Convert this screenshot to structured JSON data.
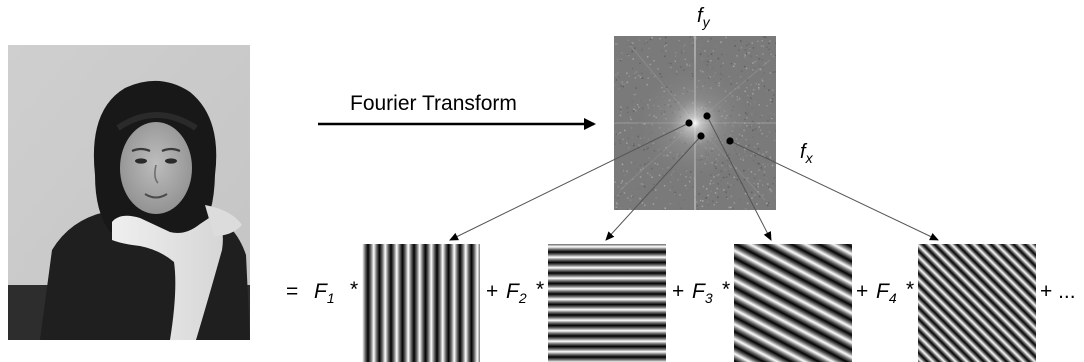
{
  "transform_label": "Fourier Transform",
  "fy_label": {
    "base": "f",
    "sub": "y"
  },
  "fx_label": {
    "base": "f",
    "sub": "x"
  },
  "photo": {
    "description_icon": "portrait-photo"
  },
  "equals_sign": "=",
  "terms": [
    {
      "prefix": "F",
      "sub": "1",
      "op": "*",
      "pattern": "vertical",
      "period": 11.5,
      "angle": 0
    },
    {
      "plus": "+",
      "prefix": "F",
      "sub": "2",
      "op": "*",
      "pattern": "horizontal",
      "period": 10.5,
      "angle": 90
    },
    {
      "plus": "+",
      "prefix": "F",
      "sub": "3",
      "op": "*",
      "pattern": "diagonal-coarse",
      "period": 13,
      "angle": 120
    },
    {
      "plus": "+",
      "prefix": "F",
      "sub": "4",
      "op": "*",
      "pattern": "diagonal-fine",
      "period": 8,
      "angle": 135
    }
  ],
  "trailing": "+ ...",
  "colors": {
    "background": "#ffffff",
    "line": "#000000",
    "spectrum_bg": "#7a7a7a"
  }
}
